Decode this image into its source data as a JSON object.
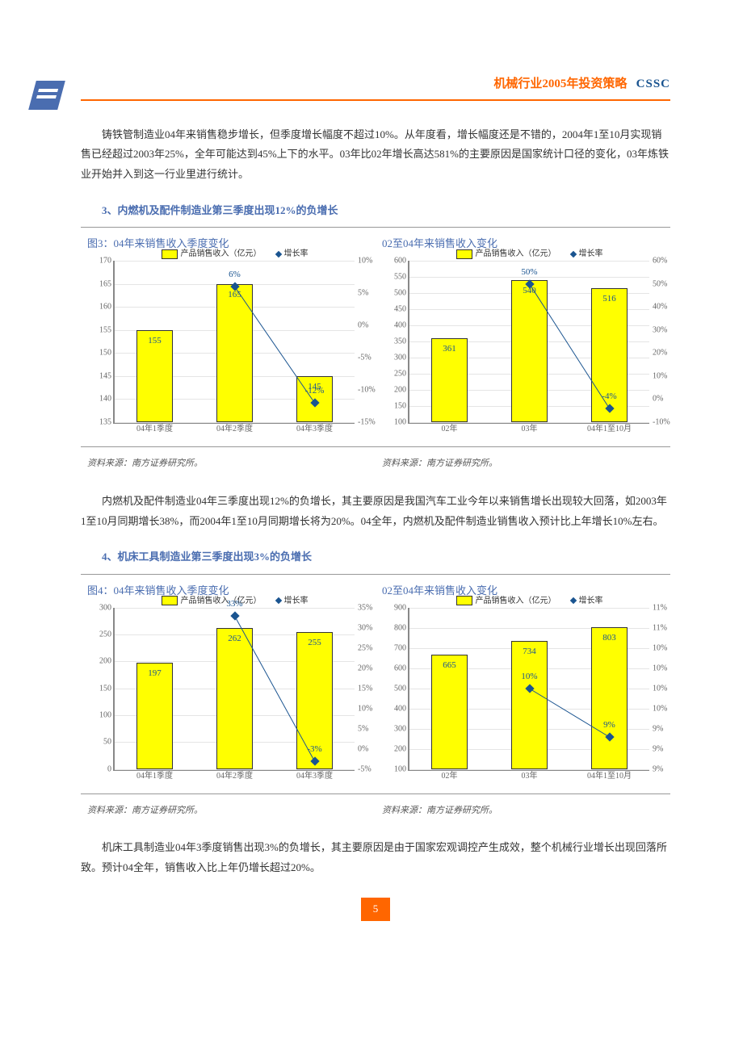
{
  "header": {
    "title": "机械行业2005年投资策略",
    "brand": "CSSC",
    "page": "5"
  },
  "paras": {
    "p1": "铸铁管制造业04年来销售稳步增长，但季度增长幅度不超过10%。从年度看，增长幅度还是不错的，2004年1至10月实现销售已经超过2003年25%，全年可能达到45%上下的水平。03年比02年增长高达581%的主要原因是国家统计口径的变化，03年炼铁业开始并入到这一行业里进行统计。",
    "s3": "3、内燃机及配件制造业第三季度出现12%的负增长",
    "p2": "内燃机及配件制造业04年三季度出现12%的负增长，其主要原因是我国汽车工业今年以来销售增长出现较大回落，如2003年1至10月同期增长38%，而2004年1至10月同期增长将为20%。04全年，内燃机及配件制造业销售收入预计比上年增长10%左右。",
    "s4": "4、机床工具制造业第三季度出现3%的负增长",
    "p3": "机床工具制造业04年3季度销售出现3%的负增长，其主要原因是由于国家宏观调控产生成效，整个机械行业增长出现回落所致。预计04全年，销售收入比上年仍增长超过20%。"
  },
  "legend": {
    "bar": "产品销售收入（亿元）",
    "line": "增长率"
  },
  "source": "资料来源：南方证券研究所。",
  "charts": {
    "c3a": {
      "title": "图3：04年来销售收入季度变化",
      "type": "bar-line",
      "cats": [
        "04年1季度",
        "04年2季度",
        "04年3季度"
      ],
      "bars": [
        155,
        165,
        145
      ],
      "bar_labels": [
        "155",
        "165",
        "145"
      ],
      "line": [
        null,
        6,
        -12
      ],
      "line_labels": [
        "",
        "6%",
        "-12%"
      ],
      "yl": {
        "min": 135,
        "max": 170,
        "step": 5
      },
      "yr": {
        "min": -15,
        "max": 10,
        "step": 5,
        "suffix": "%"
      },
      "bar_color": "#ffff00",
      "bar_border": "#333",
      "line_color": "#1a5490",
      "bg": "#ffffff",
      "grid": "#e5e5e5",
      "bar_w": 0.45
    },
    "c3b": {
      "title": "02至04年来销售收入变化",
      "type": "bar-line",
      "cats": [
        "02年",
        "03年",
        "04年1至10月"
      ],
      "bars": [
        361,
        540,
        516
      ],
      "bar_labels": [
        "361",
        "540",
        "516"
      ],
      "line": [
        null,
        50,
        -4
      ],
      "line_labels": [
        "",
        "50%",
        "-4%"
      ],
      "yl": {
        "min": 100,
        "max": 600,
        "step": 50
      },
      "yr": {
        "min": -10,
        "max": 60,
        "step": 10,
        "suffix": "%"
      },
      "bar_color": "#ffff00",
      "bar_border": "#333",
      "line_color": "#1a5490",
      "bg": "#ffffff",
      "grid": "#e5e5e5",
      "bar_w": 0.45
    },
    "c4a": {
      "title": "图4：04年来销售收入季度变化",
      "type": "bar-line",
      "cats": [
        "04年1季度",
        "04年2季度",
        "04年3季度"
      ],
      "bars": [
        197,
        262,
        255
      ],
      "bar_labels": [
        "197",
        "262",
        "255"
      ],
      "line": [
        null,
        33,
        -3
      ],
      "line_labels": [
        "",
        "33%",
        "-3%"
      ],
      "yl": {
        "min": 0,
        "max": 300,
        "step": 50
      },
      "yr": {
        "min": -5,
        "max": 35,
        "step": 5,
        "suffix": "%"
      },
      "bar_color": "#ffff00",
      "bar_border": "#333",
      "line_color": "#1a5490",
      "bg": "#ffffff",
      "grid": "#e5e5e5",
      "bar_w": 0.45
    },
    "c4b": {
      "title": "02至04年来销售收入变化",
      "type": "bar-line",
      "cats": [
        "02年",
        "03年",
        "04年1至10月"
      ],
      "bars": [
        665,
        734,
        803
      ],
      "bar_labels": [
        "665",
        "734",
        "803"
      ],
      "line": [
        null,
        10,
        9.4
      ],
      "line_labels": [
        "",
        "10%",
        "9%"
      ],
      "yl": {
        "min": 100,
        "max": 900,
        "step": 100
      },
      "yr": {
        "min": 9,
        "max": 11,
        "step": 0.25,
        "labels": [
          "9%",
          "9%",
          "9%",
          "10%",
          "10%",
          "10%",
          "10%",
          "11%",
          "11%"
        ]
      },
      "bar_color": "#ffff00",
      "bar_border": "#333",
      "line_color": "#1a5490",
      "bg": "#ffffff",
      "grid": "#e5e5e5",
      "bar_w": 0.45
    }
  }
}
